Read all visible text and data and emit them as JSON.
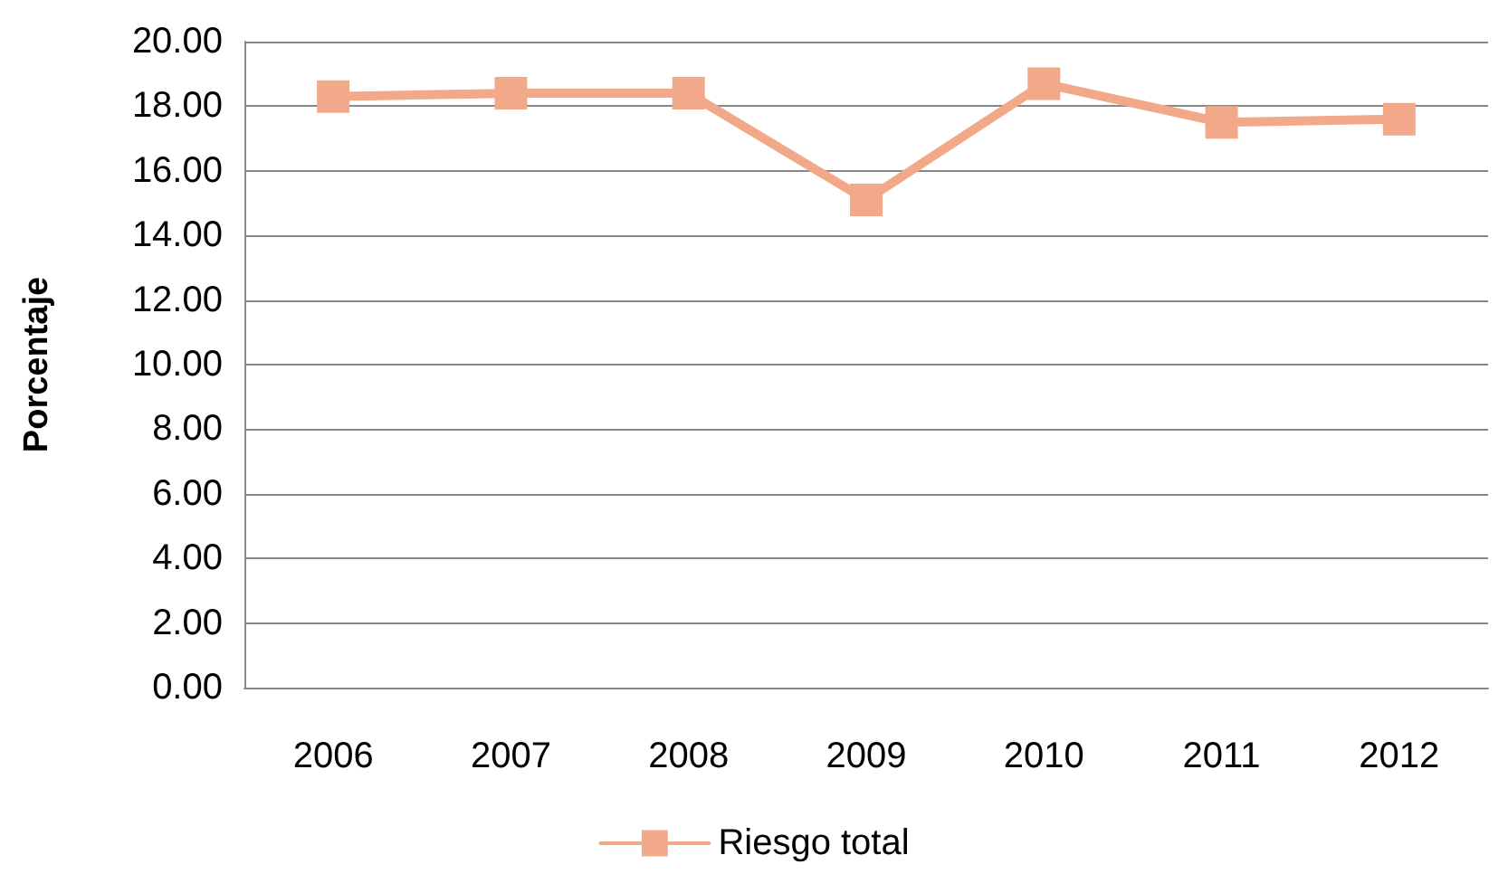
{
  "chart_data": {
    "type": "line",
    "ylabel": "Porcentaje",
    "categories": [
      "2006",
      "2007",
      "2008",
      "2009",
      "2010",
      "2011",
      "2012"
    ],
    "series": [
      {
        "name": "Riesgo total",
        "color": "#f2a98a",
        "values": [
          18.3,
          18.4,
          18.4,
          15.1,
          18.7,
          17.5,
          17.6
        ]
      }
    ],
    "ylim": [
      0,
      20
    ],
    "yticks": [
      {
        "value": 0,
        "label": "0.00"
      },
      {
        "value": 2,
        "label": "2.00"
      },
      {
        "value": 4,
        "label": "4.00"
      },
      {
        "value": 6,
        "label": "6.00"
      },
      {
        "value": 8,
        "label": "8.00"
      },
      {
        "value": 10,
        "label": "10.00"
      },
      {
        "value": 12,
        "label": "12.00"
      },
      {
        "value": 14,
        "label": "14.00"
      },
      {
        "value": 16,
        "label": "16.00"
      },
      {
        "value": 18,
        "label": "18.00"
      },
      {
        "value": 20,
        "label": "20.00"
      }
    ],
    "grid": "y",
    "legend": "bottom",
    "marker": "square",
    "line_style": "solid"
  }
}
